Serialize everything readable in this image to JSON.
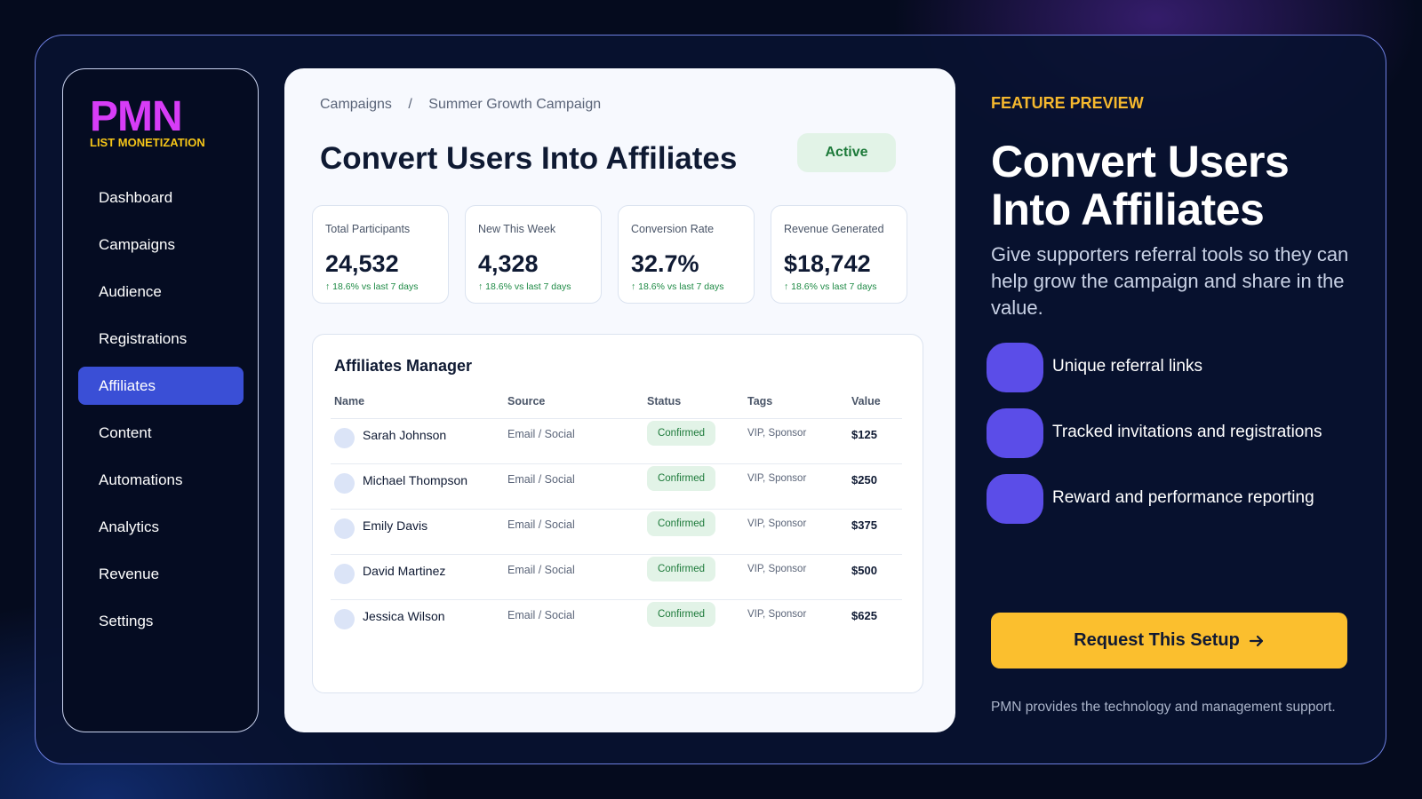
{
  "sidebar": {
    "logo": "PMN",
    "tagline": "LIST MONETIZATION",
    "nav": [
      "Dashboard",
      "Campaigns",
      "Audience",
      "Registrations",
      "Affiliates",
      "Content",
      "Automations",
      "Analytics",
      "Revenue",
      "Settings"
    ],
    "active": 4
  },
  "main": {
    "breadcrumb": {
      "items": [
        "Campaigns",
        "Summer Growth Campaign"
      ],
      "separator": "/"
    },
    "title": "Convert Users Into Affiliates",
    "status": "Active",
    "stats": [
      {
        "label": "Total Participants",
        "value": "24,532",
        "change": "↑ 18.6% vs last 7 days"
      },
      {
        "label": "New This Week",
        "value": "4,328",
        "change": "↑ 18.6% vs last 7 days"
      },
      {
        "label": "Conversion Rate",
        "value": "32.7%",
        "change": "↑ 18.6% vs last 7 days"
      },
      {
        "label": "Revenue Generated",
        "value": "$18,742",
        "change": "↑ 18.6% vs last 7 days"
      }
    ],
    "table": {
      "title": "Affiliates Manager",
      "columns": [
        "Name",
        "Source",
        "Status",
        "Tags",
        "Value"
      ],
      "rows": [
        [
          "Sarah Johnson",
          "Email / Social",
          "Confirmed",
          "VIP, Sponsor",
          "$125"
        ],
        [
          "Michael Thompson",
          "Email / Social",
          "Confirmed",
          "VIP, Sponsor",
          "$250"
        ],
        [
          "Emily Davis",
          "Email / Social",
          "Confirmed",
          "VIP, Sponsor",
          "$375"
        ],
        [
          "David Martinez",
          "Email / Social",
          "Confirmed",
          "VIP, Sponsor",
          "$500"
        ],
        [
          "Jessica Wilson",
          "Email / Social",
          "Confirmed",
          "VIP, Sponsor",
          "$625"
        ]
      ]
    }
  },
  "preview": {
    "eyebrow": "FEATURE PREVIEW",
    "headline": "Convert Users Into Affiliates",
    "description": "Give supporters referral tools so they can help grow the campaign and share in the value.",
    "features": [
      "Unique referral links",
      "Tracked invitations and registrations",
      "Reward and performance reporting"
    ],
    "cta": "Request This Setup",
    "footnote": "PMN provides the technology and management support."
  }
}
